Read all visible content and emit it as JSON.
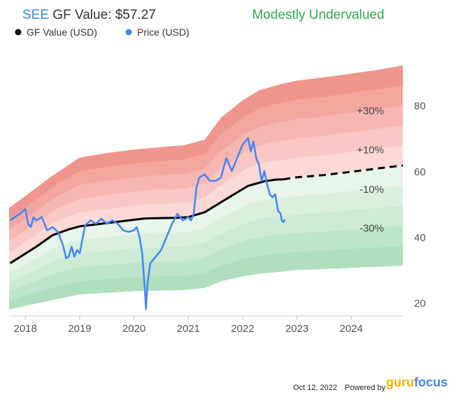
{
  "header": {
    "ticker": "SEE",
    "label": " GF Value: $57.27",
    "valuation": "Modestly Undervalued"
  },
  "legend": [
    {
      "name": "GF Value (USD)",
      "color": "#000000"
    },
    {
      "name": "Price (USD)",
      "color": "#4285f4"
    }
  ],
  "footer": {
    "date": "Oct 12, 2022",
    "powered": "Powered by",
    "brand_a": "guru",
    "brand_b": "focus"
  },
  "colors": {
    "ticker": "#4285f4",
    "valuation": "#34a853",
    "price": "#4285f4",
    "gf": "#000000",
    "red_dark": "#ee8c84",
    "red_light": "#fde2df",
    "green_dark": "#a9dcb8",
    "green_light": "#eef8f0",
    "axis_text": "#555555"
  },
  "chart_data": {
    "type": "line",
    "title": "SEE GF Value: $57.27",
    "xlabel": "",
    "ylabel": "",
    "xlim": [
      2017.7,
      2024.95
    ],
    "ylim": [
      16,
      95
    ],
    "x_ticks": [
      "2018",
      "2019",
      "2020",
      "2021",
      "2022",
      "2023",
      "2024"
    ],
    "y_ticks": [
      20,
      40,
      60,
      80
    ],
    "band_labels": [
      "+30%",
      "+10%",
      "-10%",
      "-30%"
    ],
    "series": [
      {
        "name": "GF Value (USD)",
        "x": [
          2017.72,
          2018.2,
          2018.5,
          2018.8,
          2019.0,
          2019.3,
          2019.6,
          2020.0,
          2020.2,
          2020.5,
          2020.8,
          2021.0,
          2021.3,
          2021.6,
          2021.9,
          2022.1,
          2022.4,
          2022.6,
          2022.75
        ],
        "values": [
          32.0,
          37.0,
          40.5,
          42.3,
          43.2,
          43.8,
          44.4,
          45.2,
          45.6,
          45.7,
          45.8,
          46.0,
          47.5,
          50.5,
          53.5,
          55.5,
          56.9,
          57.4,
          57.5
        ]
      },
      {
        "name": "GF Value estimate",
        "x": [
          2022.75,
          2023.0,
          2023.5,
          2024.0,
          2024.5,
          2024.95
        ],
        "values": [
          57.5,
          58.1,
          58.8,
          59.8,
          60.8,
          61.7
        ]
      },
      {
        "name": "Price (USD)",
        "x": [
          2017.72,
          2017.8,
          2017.9,
          2018.0,
          2018.05,
          2018.1,
          2018.15,
          2018.2,
          2018.3,
          2018.4,
          2018.5,
          2018.6,
          2018.7,
          2018.75,
          2018.8,
          2018.85,
          2018.9,
          2018.95,
          2019.0,
          2019.1,
          2019.2,
          2019.3,
          2019.4,
          2019.5,
          2019.6,
          2019.7,
          2019.8,
          2019.9,
          2020.0,
          2020.05,
          2020.1,
          2020.15,
          2020.2,
          2020.22,
          2020.25,
          2020.3,
          2020.4,
          2020.5,
          2020.6,
          2020.7,
          2020.8,
          2020.9,
          2021.0,
          2021.05,
          2021.1,
          2021.15,
          2021.2,
          2021.3,
          2021.4,
          2021.5,
          2021.6,
          2021.7,
          2021.8,
          2021.9,
          2022.0,
          2022.1,
          2022.15,
          2022.2,
          2022.25,
          2022.3,
          2022.35,
          2022.4,
          2022.45,
          2022.5,
          2022.55,
          2022.6,
          2022.65,
          2022.7,
          2022.72,
          2022.75,
          2022.78
        ],
        "values": [
          45,
          46,
          47,
          48.5,
          44,
          43,
          46,
          45,
          46,
          42,
          43,
          41.5,
          37,
          33.5,
          34,
          37,
          34,
          36,
          35,
          43.5,
          45,
          44,
          45.5,
          44,
          45,
          44,
          42,
          41.5,
          42,
          43,
          40,
          35,
          24,
          18,
          26,
          32,
          34,
          36,
          40,
          44,
          47,
          45,
          46,
          45,
          47,
          55,
          58,
          59,
          57,
          57,
          58,
          64,
          60,
          64,
          68,
          70,
          66,
          69,
          64,
          62,
          57,
          60,
          56,
          53,
          52,
          53,
          48,
          47,
          45,
          44.5,
          45.3
        ]
      }
    ],
    "bands": {
      "upper_envelope": {
        "x": [
          2017.72,
          2018.5,
          2019.0,
          2019.5,
          2020.0,
          2020.5,
          2020.9,
          2021.3,
          2021.6,
          2022.0,
          2022.3,
          2022.7,
          2023.0,
          2023.5,
          2024.0,
          2024.5,
          2024.95
        ],
        "values": [
          49,
          58.6,
          64.1,
          65.5,
          66.5,
          67.3,
          67.8,
          69.5,
          76.2,
          81.5,
          84.5,
          86.4,
          87.5,
          88.5,
          89.6,
          90.8,
          92.1
        ]
      },
      "lower_envelope": {
        "x": [
          2017.72,
          2018.5,
          2019.0,
          2019.5,
          2020.0,
          2020.5,
          2020.9,
          2021.3,
          2021.6,
          2022.0,
          2022.3,
          2022.7,
          2023.0,
          2023.5,
          2024.0,
          2024.5,
          2024.95
        ],
        "values": [
          18,
          20.8,
          22.5,
          23.0,
          23.5,
          23.7,
          23.8,
          24.5,
          26.5,
          28.0,
          28.8,
          29.4,
          29.9,
          30.2,
          30.6,
          30.9,
          31.2
        ]
      }
    }
  }
}
